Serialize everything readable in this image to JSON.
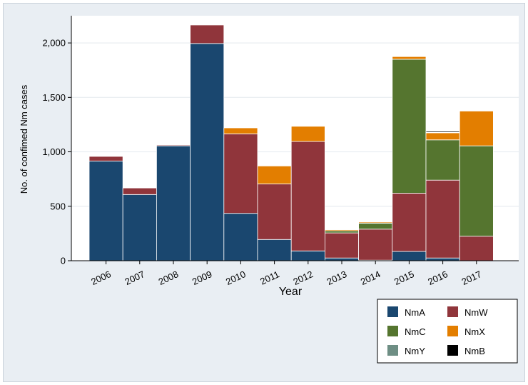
{
  "chart_data": {
    "type": "bar",
    "stacked": true,
    "xlabel": "Year",
    "ylabel": "No. of confimed Nm cases",
    "categories": [
      "2006",
      "2007",
      "2008",
      "2009",
      "2010",
      "2011",
      "2012",
      "2013",
      "2014",
      "2015",
      "2016",
      "2017"
    ],
    "ylim": [
      0,
      2250
    ],
    "yticks": [
      0,
      500,
      1000,
      1500,
      2000
    ],
    "ytick_labels": [
      "0",
      "500",
      "1,000",
      "1,500",
      "2,000"
    ],
    "grid": true,
    "legend_position": "bottom-right",
    "series": [
      {
        "name": "NmA",
        "color": "#1a476f",
        "values": [
          915,
          608,
          1055,
          1995,
          435,
          195,
          90,
          25,
          5,
          85,
          25,
          0
        ]
      },
      {
        "name": "NmW",
        "color": "#90353b",
        "values": [
          43,
          60,
          8,
          170,
          730,
          510,
          1005,
          230,
          285,
          535,
          715,
          225
        ]
      },
      {
        "name": "NmC",
        "color": "#55752f",
        "values": [
          0,
          0,
          0,
          0,
          0,
          0,
          0,
          20,
          55,
          1230,
          370,
          830
        ]
      },
      {
        "name": "NmX",
        "color": "#e37e00",
        "values": [
          0,
          0,
          0,
          0,
          55,
          165,
          140,
          10,
          10,
          25,
          65,
          320
        ]
      },
      {
        "name": "NmY",
        "color": "#6e8e84",
        "values": [
          0,
          0,
          0,
          0,
          0,
          0,
          0,
          0,
          0,
          0,
          5,
          0
        ]
      },
      {
        "name": "NmB",
        "color": "#000000",
        "values": [
          0,
          0,
          0,
          0,
          0,
          0,
          5,
          5,
          5,
          5,
          10,
          5
        ]
      }
    ]
  }
}
